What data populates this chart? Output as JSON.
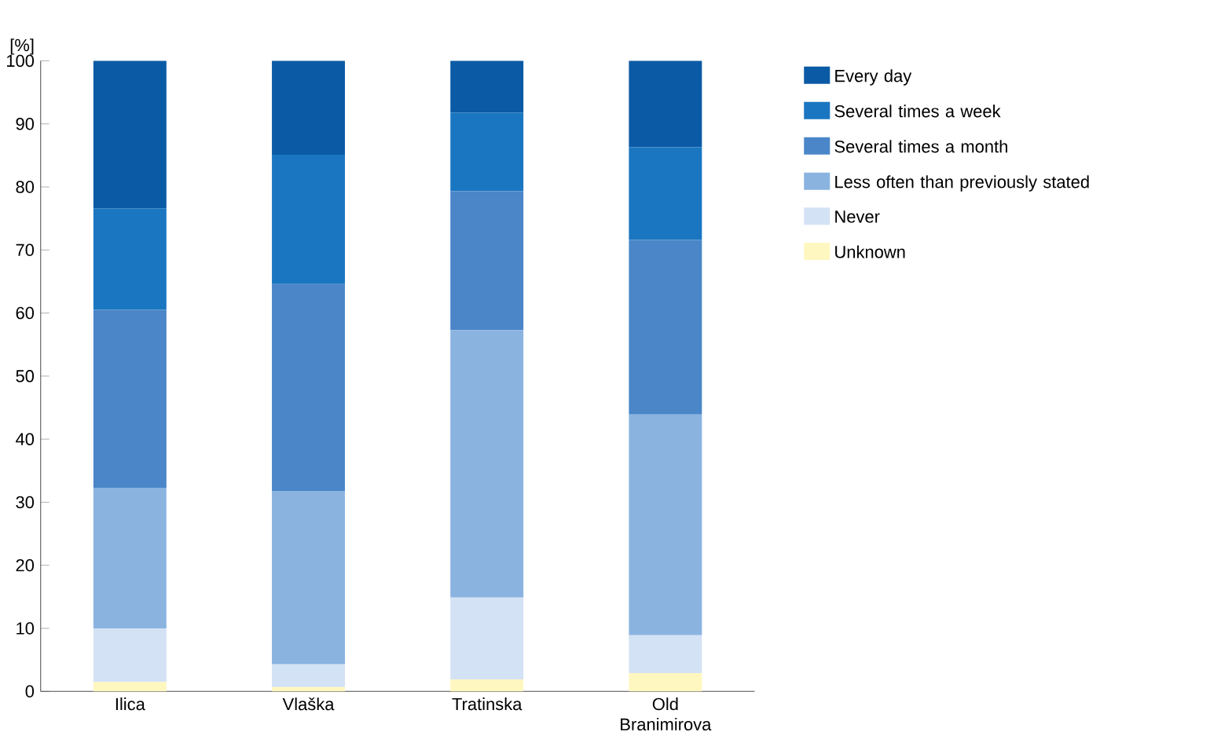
{
  "chart_data": {
    "type": "bar",
    "stacked": true,
    "ylabel": "[%]",
    "categories": [
      "Ilica",
      "Vlaška",
      "Tratinska",
      "Old Branimirova"
    ],
    "ylim": [
      0,
      100
    ],
    "yticks": [
      0,
      10,
      20,
      30,
      40,
      50,
      60,
      70,
      80,
      90,
      100
    ],
    "legend": "right",
    "series": [
      {
        "name": "Unknown",
        "color": "#fff7c0",
        "values": [
          1.5,
          0.7,
          1.9,
          2.9
        ]
      },
      {
        "name": "Never",
        "color": "#d4e2f5",
        "values": [
          8.5,
          3.6,
          13.0,
          6.0
        ]
      },
      {
        "name": "Less often than previously stated",
        "color": "#8ab3e0",
        "values": [
          22.3,
          27.5,
          42.4,
          35.0
        ]
      },
      {
        "name": "Several times a month",
        "color": "#4a86c8",
        "values": [
          28.2,
          32.8,
          22.0,
          27.7
        ]
      },
      {
        "name": "Several times a week",
        "color": "#1a76c0",
        "values": [
          16.1,
          20.5,
          12.5,
          14.7
        ]
      },
      {
        "name": "Every day",
        "color": "#0b5aa5",
        "values": [
          23.4,
          14.9,
          8.2,
          13.7
        ]
      }
    ]
  }
}
